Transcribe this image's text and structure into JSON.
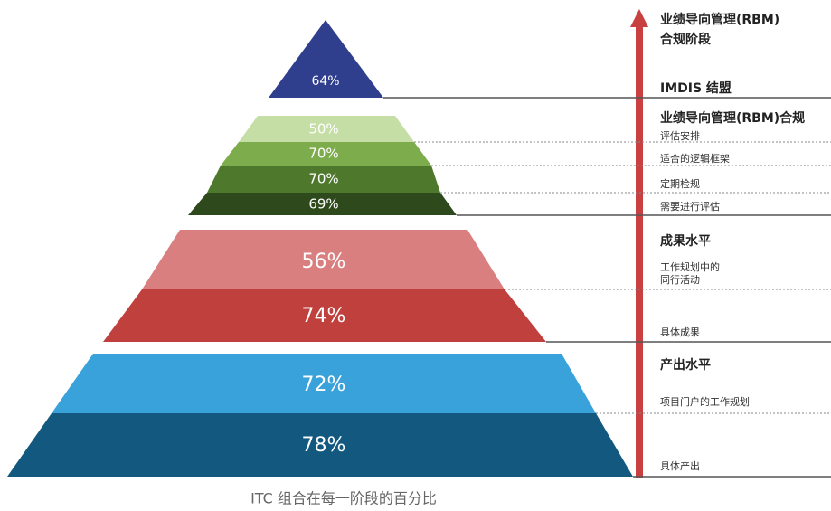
{
  "title_lines": [
    "业绩导向管理(RBM)",
    "合规阶段"
  ],
  "tiers": [
    {
      "heading": "IMDIS 结盟",
      "bands": [
        {
          "label": "64%"
        }
      ]
    },
    {
      "heading": "业绩导向管理(RBM)合规",
      "bands": [
        {
          "label": "50%",
          "note_lines": [
            "评估安排"
          ]
        },
        {
          "label": "70%",
          "note_lines": [
            "适合的逻辑框架"
          ]
        },
        {
          "label": "70%",
          "note_lines": [
            "定期检规"
          ]
        },
        {
          "label": "69%",
          "note_lines": [
            "需要进行评估"
          ]
        }
      ]
    },
    {
      "heading": "成果水平",
      "bands": [
        {
          "label": "56%",
          "note_lines": [
            "工作规划中的",
            "同行活动"
          ]
        },
        {
          "label": "74%",
          "note_lines": [
            "具体成果"
          ]
        }
      ]
    },
    {
      "heading": "产出水平",
      "bands": [
        {
          "label": "72%",
          "note_lines": [
            "项目门户的工作规划"
          ]
        },
        {
          "label": "78%",
          "note_lines": [
            "具体产出"
          ]
        }
      ]
    }
  ],
  "caption": "ITC 组合在每一阶段的百分比"
}
